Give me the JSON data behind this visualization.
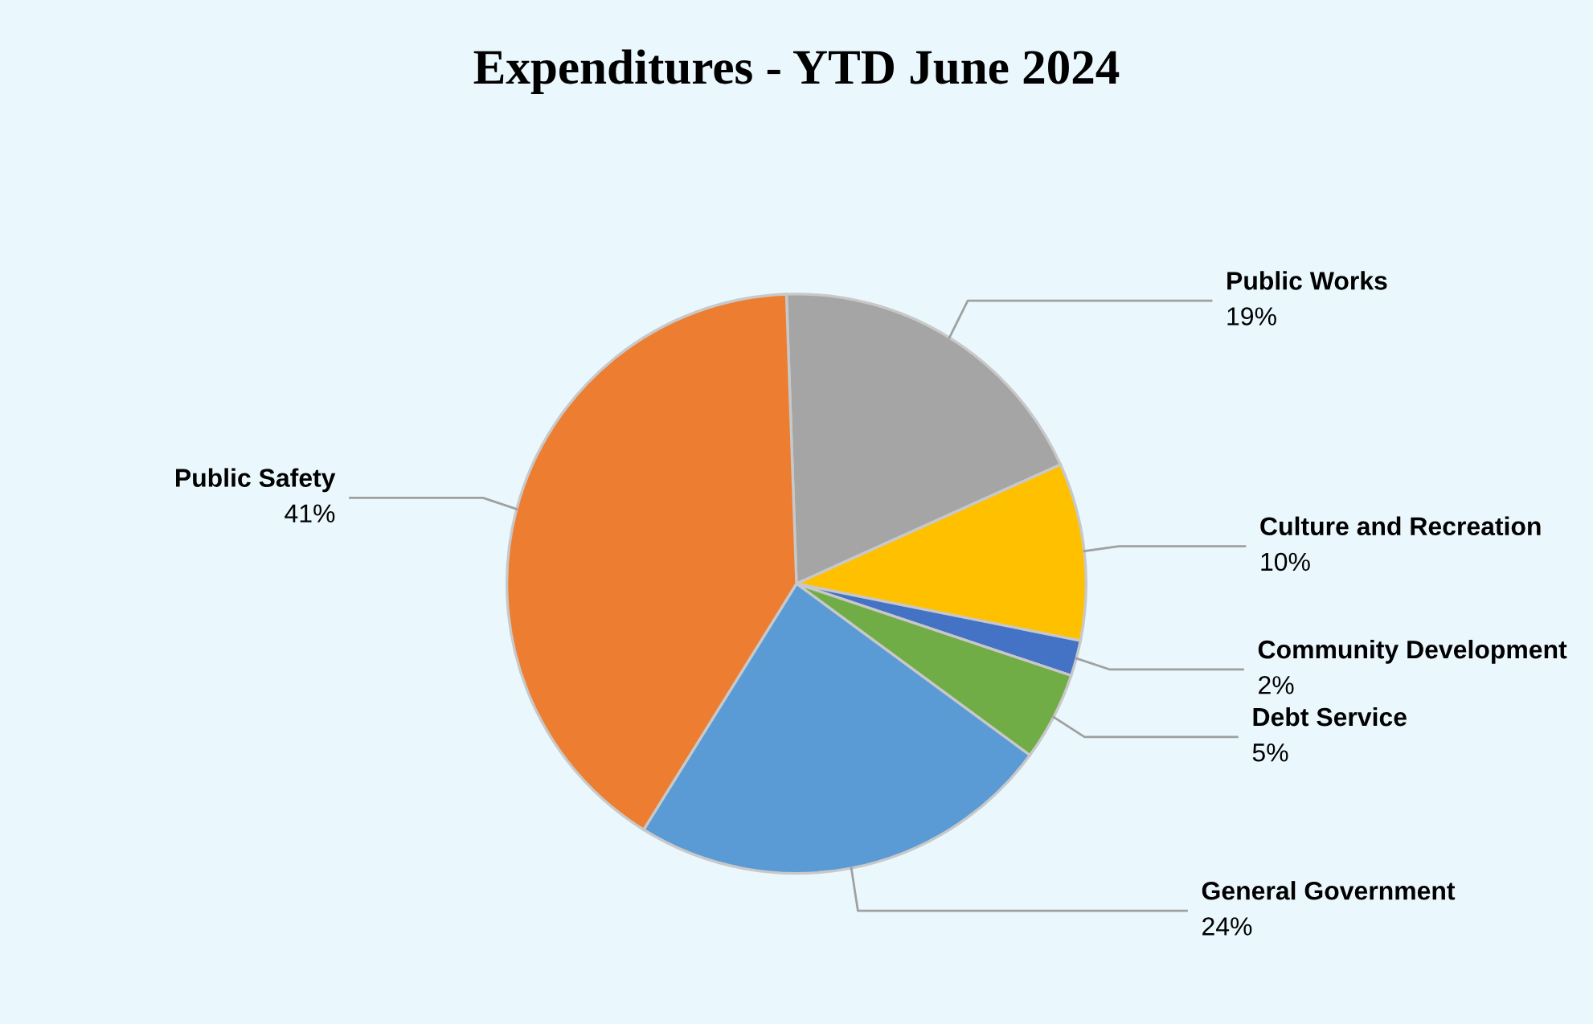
{
  "chart_data": {
    "type": "pie",
    "title": "Expenditures - YTD June 2024",
    "categories": [
      "Public Works",
      "Culture and Recreation",
      "Community Development",
      "Debt Service",
      "General Government",
      "Public Safety"
    ],
    "values": [
      19,
      10,
      2,
      5,
      24,
      41
    ],
    "value_labels": [
      "19%",
      "10%",
      "2%",
      "5%",
      "24%",
      "41%"
    ],
    "colors": [
      "#a5a5a5",
      "#ffc000",
      "#4472c4",
      "#70ad47",
      "#5b9bd5",
      "#ed7d31"
    ],
    "legend": false
  }
}
